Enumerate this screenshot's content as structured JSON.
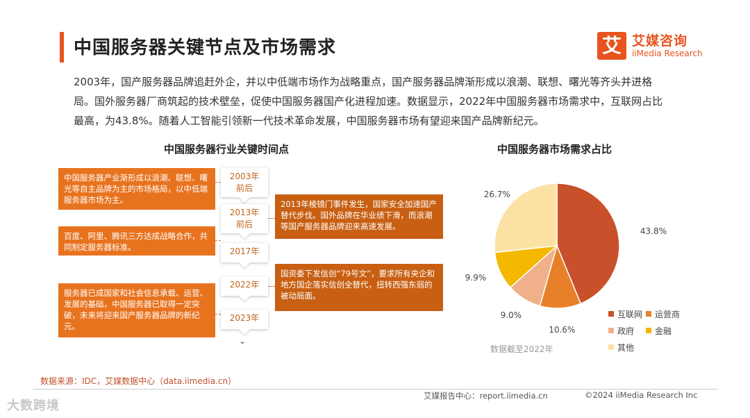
{
  "header": {
    "title": "中国服务器关键节点及市场需求"
  },
  "logo": {
    "mark": "艾",
    "cn": "艾媒咨询",
    "en": "iiMedia Research"
  },
  "intro": "2003年，国产服务器品牌追赶外企，并以中低端市场作为战略重点，国产服务器品牌渐形成以浪潮、联想、曙光等齐头并进格局。国外服务器厂商筑起的技术壁垒，促使中国服务器国产化进程加速。数据显示，2022年中国服务器市场需求中，互联网占比最高，为43.8%。随着人工智能引领新一代技术革命发展，中国服务器市场有望迎来国产品牌新纪元。",
  "timeline": {
    "title": "中国服务器行业关键时间点",
    "nodes": [
      {
        "line1": "2003年",
        "line2": "前后"
      },
      {
        "line1": "2013年",
        "line2": "前后"
      },
      {
        "line1": "2017年",
        "line2": ""
      },
      {
        "line1": "2022年",
        "line2": ""
      },
      {
        "line1": "2023年",
        "line2": ""
      }
    ],
    "end_arrow": "⌄",
    "notes": [
      "中国服务器产业渐形成以浪潮、联想、曙光等自主品牌为主的市场格局，以中低端服务器市场为主。",
      "2013年棱镜门事件发生，国家安全加速国产替代步伐。国外品牌在华业绩下滑，而浪潮等国产服务器品牌迎来高速发展。",
      "百度、阿里、腾讯三方达成战略合作，共同制定服务器标准。",
      "国资委下发信创“79号文”，要求所有央企和地方国企落实信创全替代，扭转西强东弱的被动局面。",
      "服务器已成国家和社会信息承载、运营、发展的基础，中国服务器已取得一定突破，未来将迎来国产服务器品牌的新纪元。"
    ]
  },
  "chart_data": {
    "type": "pie",
    "title": "中国服务器市场需求占比",
    "categories": [
      "互联网",
      "运营商",
      "政府",
      "金融",
      "其他"
    ],
    "values": [
      43.8,
      10.6,
      9.0,
      9.9,
      26.7
    ],
    "labels": [
      "43.8%",
      "10.6%",
      "9.0%",
      "9.9%",
      "26.7%"
    ],
    "colors": [
      "#c8502b",
      "#e8802a",
      "#f0b08a",
      "#f5b800",
      "#fbe2a4"
    ],
    "legend_position": "bottom-right",
    "note": "数据截至2022年"
  },
  "footer": {
    "source": "数据来源：IDC，艾媒数据中心（data.iimedia.cn）",
    "center": "艾媒报告中心：report.iimedia.cn",
    "right": "©2024  iiMedia Research  Inc",
    "watermark": "大数跨境"
  }
}
